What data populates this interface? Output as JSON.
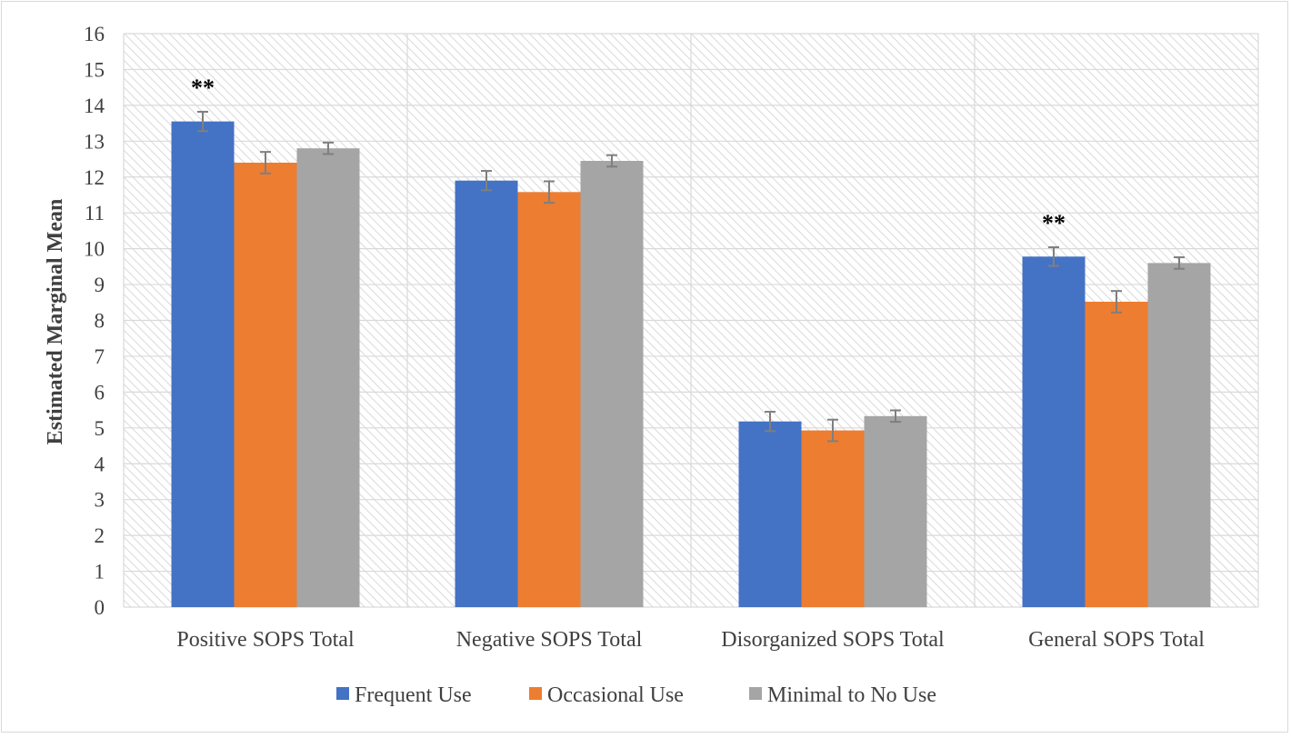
{
  "chart_data": {
    "type": "bar",
    "title": "",
    "xlabel": "",
    "ylabel": "Estimated Marginal Mean",
    "ylim": [
      0,
      16
    ],
    "yticks": [
      0,
      1,
      2,
      3,
      4,
      5,
      6,
      7,
      8,
      9,
      10,
      11,
      12,
      13,
      14,
      15,
      16
    ],
    "categories": [
      "Positive SOPS Total",
      "Negative SOPS Total",
      "Disorganized SOPS Total",
      "General SOPS Total"
    ],
    "series": [
      {
        "name": "Frequent Use",
        "color": "#4472c4",
        "values": [
          13.55,
          11.9,
          5.18,
          9.78
        ],
        "errors": [
          0.27,
          0.27,
          0.27,
          0.26
        ]
      },
      {
        "name": "Occasional Use",
        "color": "#ed7d31",
        "values": [
          12.4,
          11.58,
          4.93,
          8.52
        ],
        "errors": [
          0.3,
          0.3,
          0.3,
          0.3
        ]
      },
      {
        "name": "Minimal to No Use",
        "color": "#a5a5a5",
        "values": [
          12.8,
          12.45,
          5.33,
          9.6
        ],
        "errors": [
          0.16,
          0.16,
          0.16,
          0.16
        ]
      }
    ],
    "annotations": [
      {
        "category_index": 0,
        "text": "**"
      },
      {
        "category_index": 3,
        "text": "**"
      }
    ],
    "legend_position": "bottom",
    "grid": true,
    "colors": {
      "error_bar": "#7f7f7f",
      "grid": "#d9d9d9",
      "hatch": "#d9d9d9"
    }
  }
}
